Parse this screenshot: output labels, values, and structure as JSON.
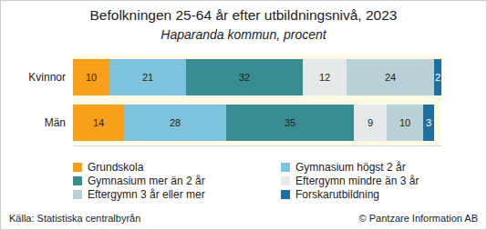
{
  "chart_data": {
    "type": "bar",
    "title": "Befolkningen 25-64 år efter utbildningsnivå, 2023",
    "subtitle": "Haparanda kommun, procent",
    "source": "Källa: Statistiska centralbyrån",
    "credit": "© Pantzare Information AB",
    "orientation": "horizontal",
    "stacked": true,
    "data_labels": true,
    "legend": "bottom",
    "tick_labels": "y",
    "xlim": [
      0,
      101
    ],
    "categories": [
      "Kvinnor",
      "Män"
    ],
    "series": [
      {
        "name": "Grundskola",
        "color": "#f7a11a",
        "values": [
          10,
          14
        ]
      },
      {
        "name": "Gymnasium högst 2 år",
        "color": "#7ec3dd",
        "values": [
          21,
          28
        ]
      },
      {
        "name": "Gymnasium mer än 2 år",
        "color": "#3a8c93",
        "values": [
          32,
          35
        ]
      },
      {
        "name": "Eftergymn mindre än 3 år",
        "color": "#e4e9e9",
        "values": [
          12,
          9
        ]
      },
      {
        "name": "Eftergymn 3 år eller mer",
        "color": "#b9d0d8",
        "values": [
          24,
          10
        ]
      },
      {
        "name": "Forskarutbildning",
        "color": "#1f6f9f",
        "values": [
          2,
          3
        ]
      }
    ]
  }
}
